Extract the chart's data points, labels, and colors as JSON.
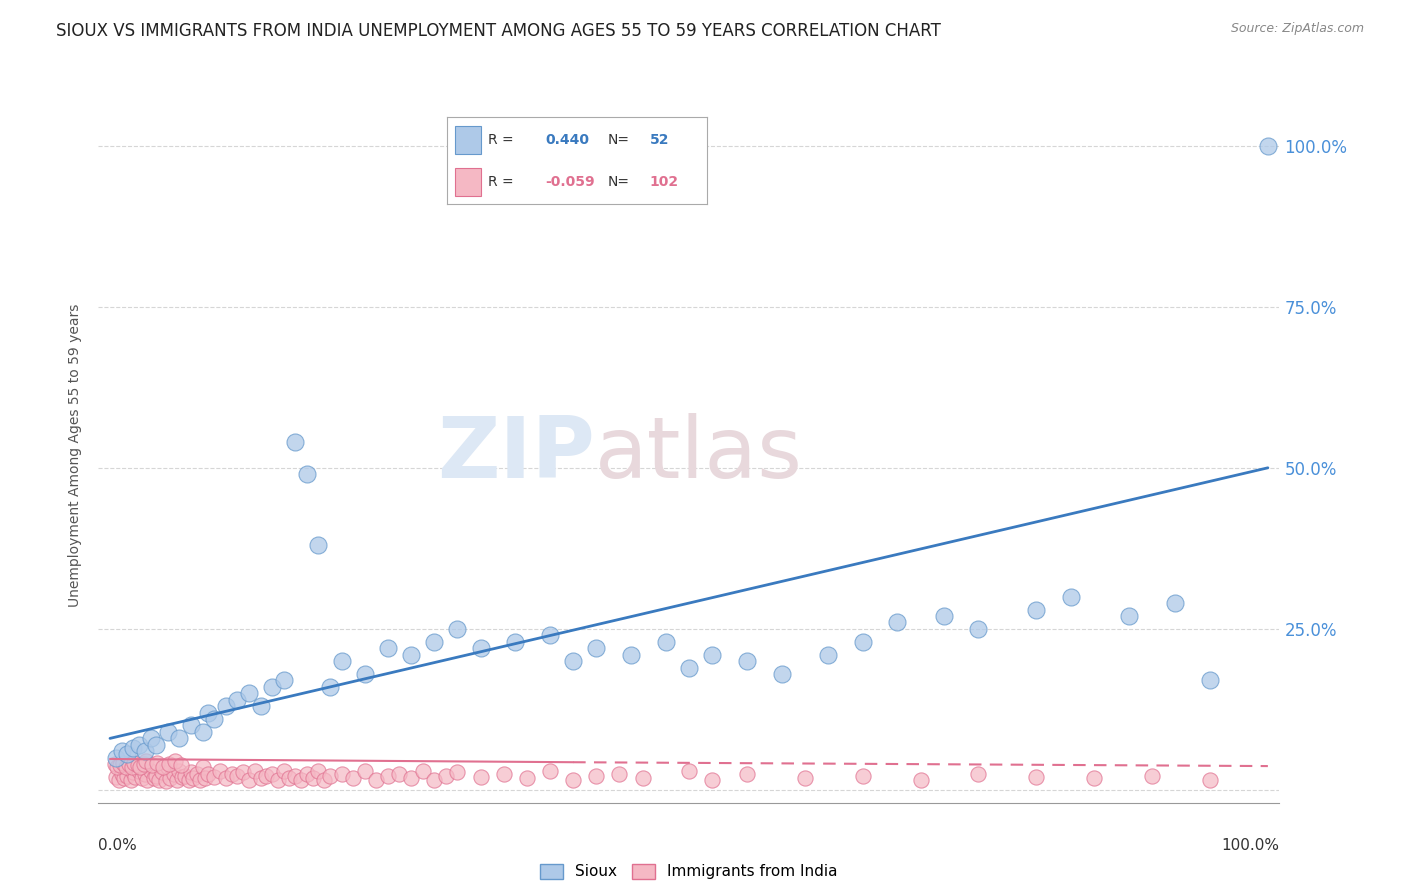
{
  "title": "SIOUX VS IMMIGRANTS FROM INDIA UNEMPLOYMENT AMONG AGES 55 TO 59 YEARS CORRELATION CHART",
  "source": "Source: ZipAtlas.com",
  "ylabel": "Unemployment Among Ages 55 to 59 years",
  "xlim": [
    -0.01,
    1.01
  ],
  "ylim": [
    -0.02,
    1.06
  ],
  "xticks": [
    0.0,
    1.0
  ],
  "xticklabels": [
    "0.0%",
    "100.0%"
  ],
  "yticks": [
    0.0,
    0.25,
    0.5,
    0.75,
    1.0
  ],
  "yticklabels_right": [
    "",
    "25.0%",
    "50.0%",
    "75.0%",
    "100.0%"
  ],
  "series1_name": "Sioux",
  "series2_name": "Immigrants from India",
  "series1_color": "#aec9e8",
  "series2_color": "#f5b8c4",
  "series1_edge": "#6699cc",
  "series2_edge": "#e07090",
  "trend1_color": "#3a7abf",
  "trend2_color": "#e07090",
  "trend1_x0": 0.0,
  "trend1_y0": 0.08,
  "trend1_x1": 1.0,
  "trend1_y1": 0.5,
  "trend2_solid_x0": 0.0,
  "trend2_solid_y0": 0.048,
  "trend2_solid_x1": 0.4,
  "trend2_solid_y1": 0.043,
  "trend2_dash_x0": 0.4,
  "trend2_dash_y0": 0.043,
  "trend2_dash_x1": 1.0,
  "trend2_dash_y1": 0.037,
  "R1": 0.44,
  "N1": 52,
  "R2": -0.059,
  "N2": 102,
  "legend_box_color1": "#aec9e8",
  "legend_box_color2": "#f5b8c4",
  "legend_edge_color1": "#6699cc",
  "legend_edge_color2": "#e07090",
  "background_color": "#ffffff",
  "watermark_zip": "ZIP",
  "watermark_atlas": "atlas",
  "title_fontsize": 12,
  "axis_label_fontsize": 10,
  "tick_fontsize": 11,
  "legend_fontsize": 11,
  "ytick_color": "#4a90d9",
  "grid_color": "#cccccc",
  "sioux_x": [
    0.005,
    0.01,
    0.015,
    0.02,
    0.025,
    0.03,
    0.035,
    0.04,
    0.05,
    0.06,
    0.07,
    0.08,
    0.085,
    0.09,
    0.1,
    0.11,
    0.12,
    0.13,
    0.14,
    0.15,
    0.16,
    0.17,
    0.18,
    0.19,
    0.2,
    0.22,
    0.24,
    0.26,
    0.28,
    0.3,
    0.32,
    0.35,
    0.38,
    0.4,
    0.42,
    0.45,
    0.48,
    0.5,
    0.52,
    0.55,
    0.58,
    0.62,
    0.65,
    0.68,
    0.72,
    0.75,
    0.8,
    0.83,
    0.88,
    0.92,
    0.95,
    1.0
  ],
  "sioux_y": [
    0.05,
    0.06,
    0.055,
    0.065,
    0.07,
    0.06,
    0.08,
    0.07,
    0.09,
    0.08,
    0.1,
    0.09,
    0.12,
    0.11,
    0.13,
    0.14,
    0.15,
    0.13,
    0.16,
    0.17,
    0.54,
    0.49,
    0.38,
    0.16,
    0.2,
    0.18,
    0.22,
    0.21,
    0.23,
    0.25,
    0.22,
    0.23,
    0.24,
    0.2,
    0.22,
    0.21,
    0.23,
    0.19,
    0.21,
    0.2,
    0.18,
    0.21,
    0.23,
    0.26,
    0.27,
    0.25,
    0.28,
    0.3,
    0.27,
    0.29,
    0.17,
    1.0
  ],
  "india_x": [
    0.005,
    0.008,
    0.01,
    0.012,
    0.015,
    0.018,
    0.02,
    0.022,
    0.025,
    0.028,
    0.03,
    0.032,
    0.035,
    0.038,
    0.04,
    0.042,
    0.045,
    0.048,
    0.05,
    0.052,
    0.055,
    0.058,
    0.06,
    0.062,
    0.065,
    0.068,
    0.07,
    0.072,
    0.075,
    0.078,
    0.08,
    0.082,
    0.085,
    0.09,
    0.095,
    0.1,
    0.105,
    0.11,
    0.115,
    0.12,
    0.125,
    0.13,
    0.135,
    0.14,
    0.145,
    0.15,
    0.155,
    0.16,
    0.165,
    0.17,
    0.175,
    0.18,
    0.185,
    0.19,
    0.2,
    0.21,
    0.22,
    0.23,
    0.24,
    0.25,
    0.26,
    0.27,
    0.28,
    0.29,
    0.3,
    0.32,
    0.34,
    0.36,
    0.38,
    0.4,
    0.42,
    0.44,
    0.46,
    0.5,
    0.52,
    0.55,
    0.6,
    0.65,
    0.7,
    0.75,
    0.8,
    0.85,
    0.9,
    0.95,
    0.004,
    0.006,
    0.009,
    0.011,
    0.014,
    0.016,
    0.019,
    0.021,
    0.024,
    0.026,
    0.029,
    0.031,
    0.036,
    0.041,
    0.046,
    0.051,
    0.056,
    0.061
  ],
  "india_y": [
    0.02,
    0.015,
    0.025,
    0.018,
    0.022,
    0.016,
    0.028,
    0.02,
    0.03,
    0.018,
    0.025,
    0.015,
    0.03,
    0.018,
    0.022,
    0.016,
    0.028,
    0.014,
    0.035,
    0.018,
    0.025,
    0.015,
    0.03,
    0.02,
    0.022,
    0.016,
    0.028,
    0.018,
    0.025,
    0.015,
    0.035,
    0.018,
    0.025,
    0.02,
    0.03,
    0.018,
    0.025,
    0.022,
    0.028,
    0.016,
    0.03,
    0.018,
    0.022,
    0.025,
    0.016,
    0.03,
    0.018,
    0.022,
    0.016,
    0.025,
    0.018,
    0.03,
    0.016,
    0.022,
    0.025,
    0.018,
    0.03,
    0.016,
    0.022,
    0.025,
    0.018,
    0.03,
    0.016,
    0.022,
    0.028,
    0.02,
    0.025,
    0.018,
    0.03,
    0.016,
    0.022,
    0.025,
    0.018,
    0.03,
    0.016,
    0.025,
    0.018,
    0.022,
    0.016,
    0.025,
    0.02,
    0.018,
    0.022,
    0.016,
    0.04,
    0.035,
    0.038,
    0.042,
    0.036,
    0.04,
    0.035,
    0.042,
    0.038,
    0.036,
    0.04,
    0.045,
    0.038,
    0.042,
    0.036,
    0.04,
    0.045,
    0.038
  ]
}
